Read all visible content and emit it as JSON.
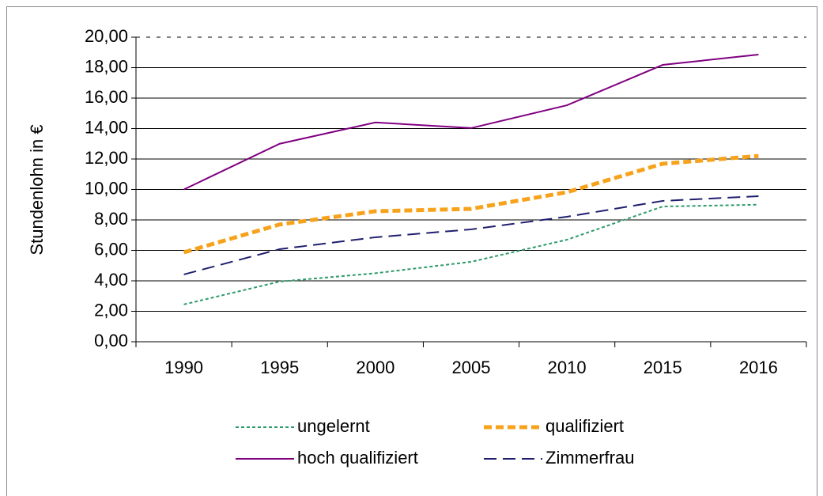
{
  "chart_data": {
    "type": "line",
    "y_label": "Stundenlohn in €",
    "categories": [
      "1990",
      "1995",
      "2000",
      "2005",
      "2010",
      "2015",
      "2016"
    ],
    "series": [
      {
        "name": "ungelernt",
        "color": "#2e9a6a",
        "values": [
          2.45,
          3.95,
          4.5,
          5.25,
          6.7,
          8.88,
          9.0
        ]
      },
      {
        "name": "qualifiziert",
        "color": "#f7a21b",
        "values": [
          5.87,
          7.7,
          8.57,
          8.73,
          9.82,
          11.69,
          12.2
        ]
      },
      {
        "name": "hoch qualifiziert",
        "color": "#800080",
        "values": [
          10.0,
          13.0,
          14.4,
          14.03,
          15.53,
          18.18,
          18.86
        ]
      },
      {
        "name": "Zimmerfrau",
        "color": "#1f1f6e",
        "values": [
          4.42,
          6.08,
          6.86,
          7.38,
          8.21,
          9.25,
          9.56
        ]
      }
    ],
    "ylim": [
      0,
      20
    ],
    "yticks": [
      {
        "value": 0,
        "label": "0,00"
      },
      {
        "value": 2,
        "label": "2,00"
      },
      {
        "value": 4,
        "label": "4,00"
      },
      {
        "value": 6,
        "label": "6,00"
      },
      {
        "value": 8,
        "label": "8,00"
      },
      {
        "value": 10,
        "label": "10,00"
      },
      {
        "value": 12,
        "label": "12,00"
      },
      {
        "value": 14,
        "label": "14,00"
      },
      {
        "value": 16,
        "label": "16,00"
      },
      {
        "value": 18,
        "label": "18,00"
      },
      {
        "value": 20,
        "label": "20,00"
      }
    ],
    "grid": true,
    "legend": "bottom"
  }
}
